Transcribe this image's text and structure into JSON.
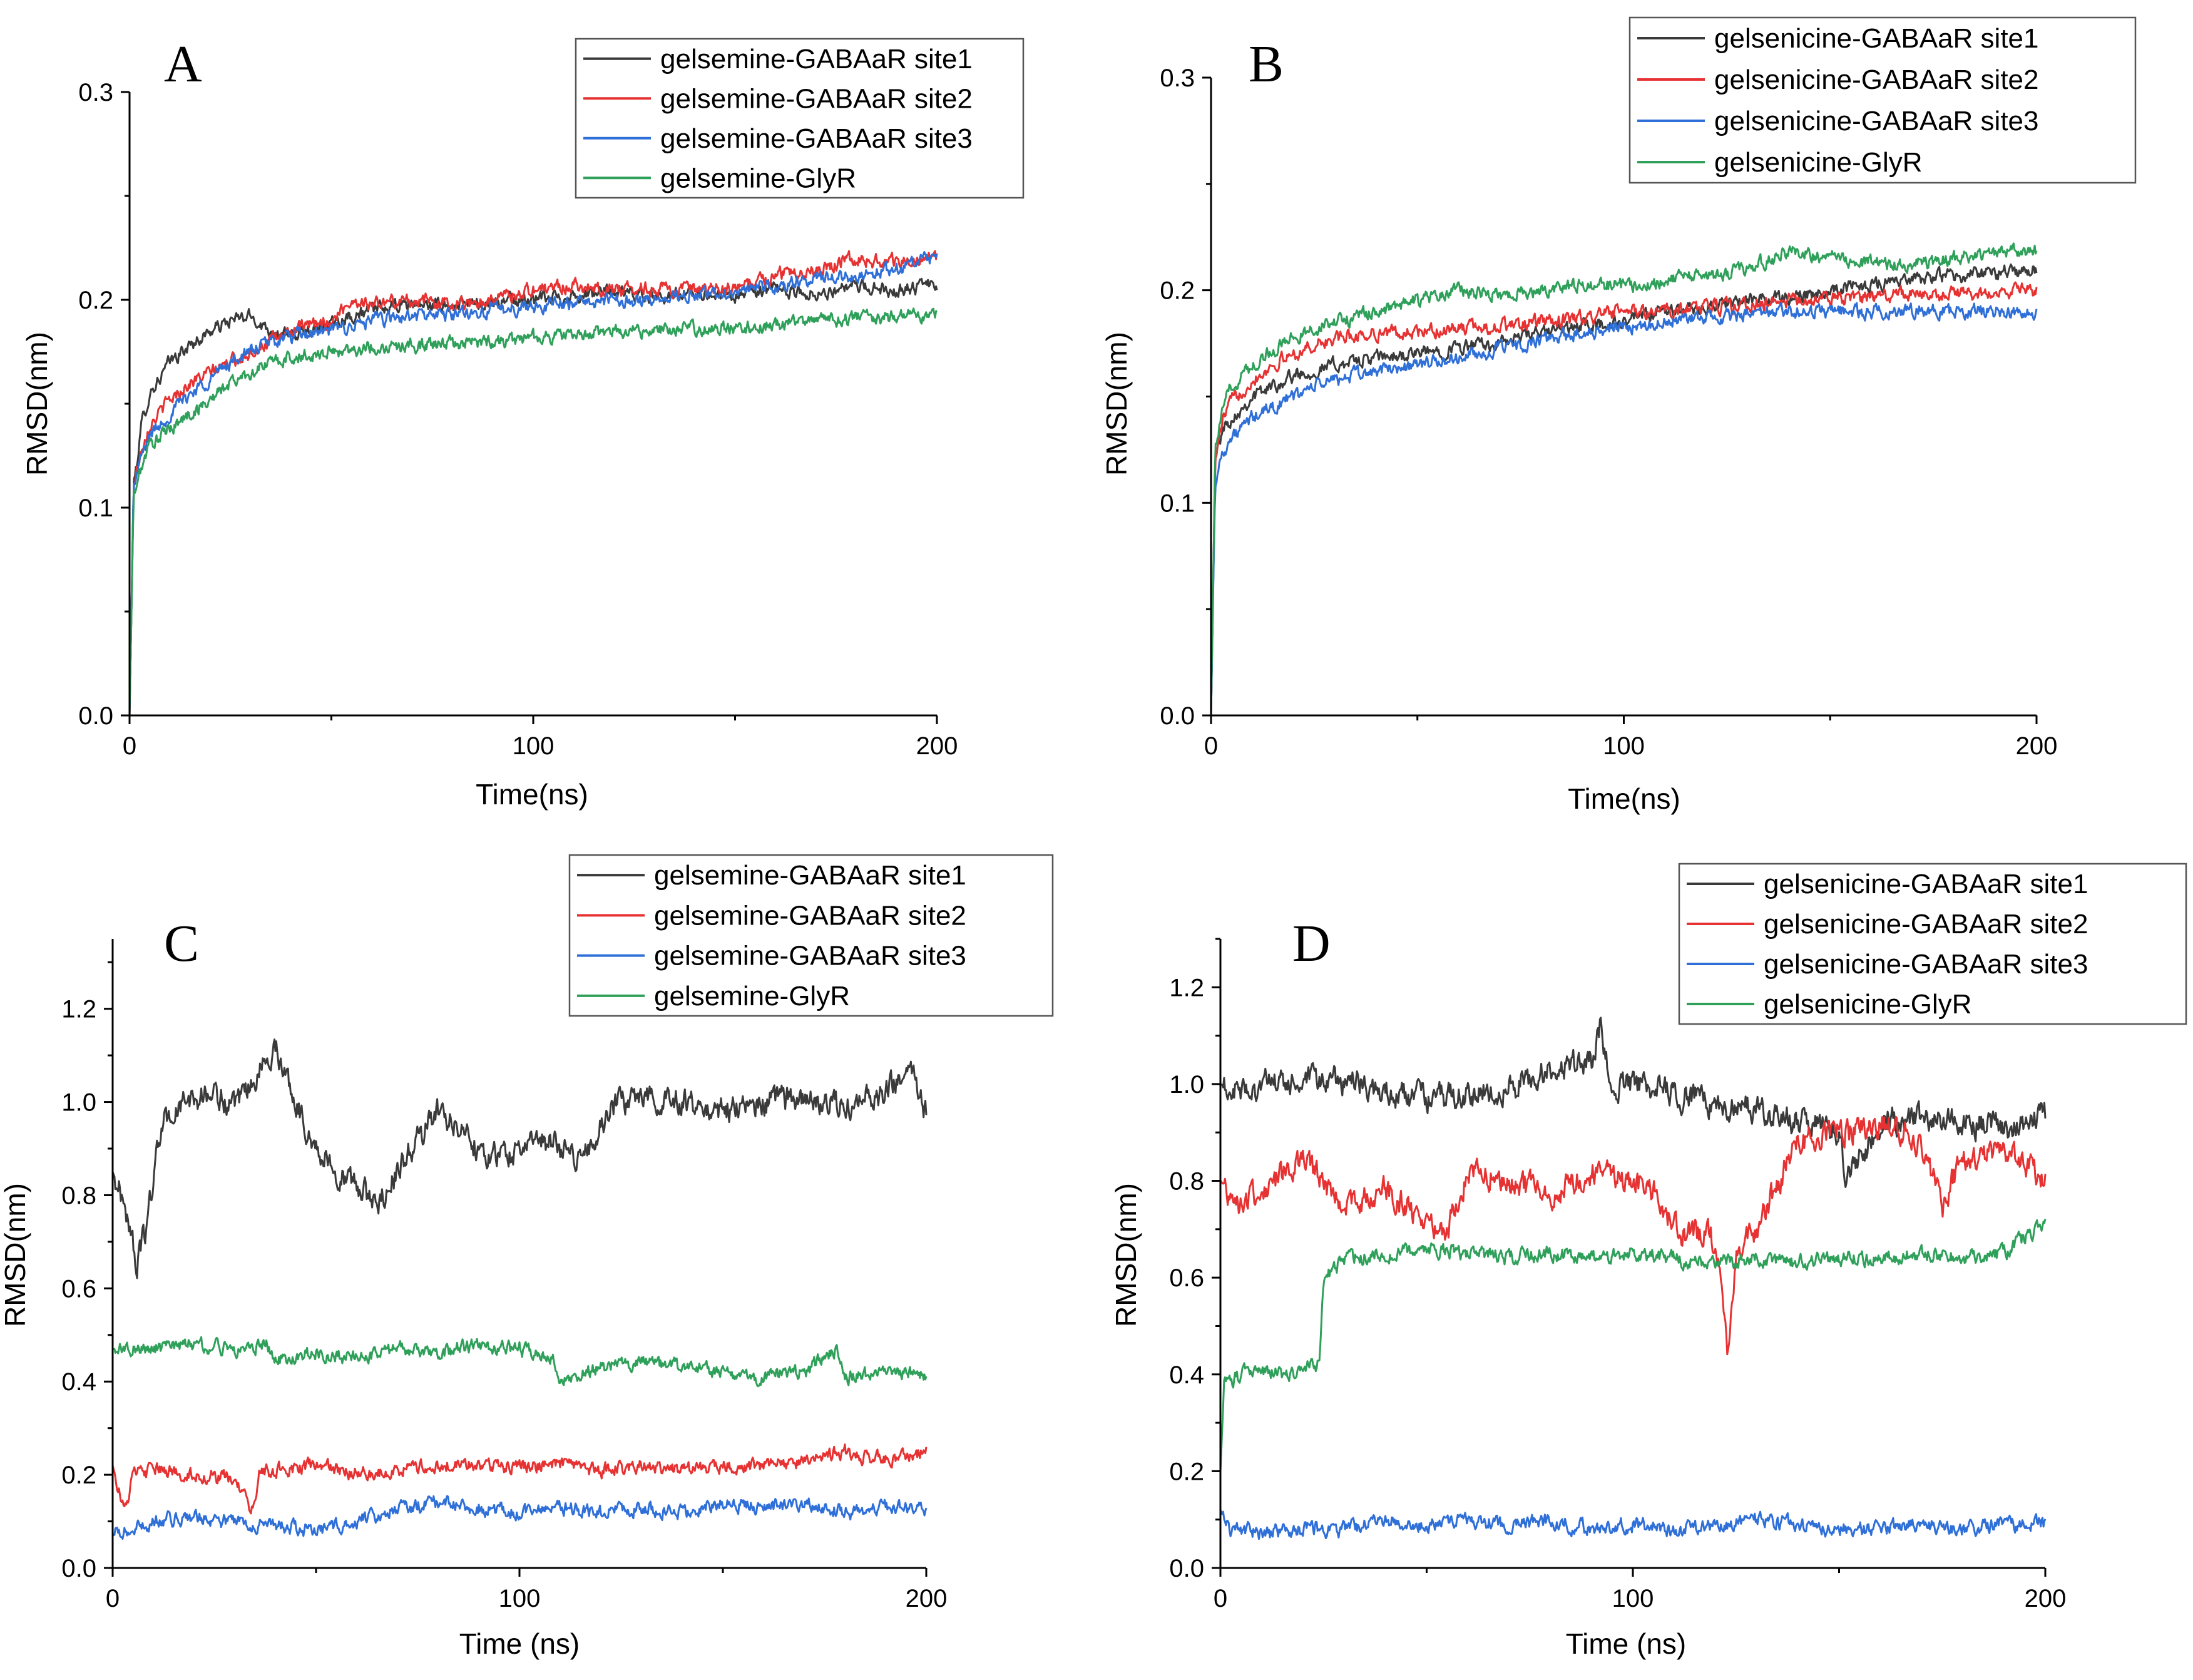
{
  "chart_data": [
    {
      "panel": "A",
      "type": "line",
      "xlabel": "Time(ns)",
      "ylabel": "RMSD(nm)",
      "xlim": [
        0,
        200
      ],
      "ylim": [
        0,
        0.3
      ],
      "xticks": [
        0,
        100,
        200
      ],
      "yticks": [
        0.0,
        0.1,
        0.2,
        0.3
      ],
      "legend_position": "top-right",
      "series": [
        {
          "name": "gelsemine-GABAaR site1",
          "color": "#3a3a3a",
          "x": [
            0,
            1,
            3,
            5,
            10,
            15,
            20,
            25,
            30,
            35,
            40,
            50,
            60,
            70,
            80,
            90,
            100,
            110,
            120,
            130,
            140,
            150,
            160,
            170,
            180,
            190,
            200
          ],
          "y": [
            0,
            0.11,
            0.14,
            0.155,
            0.17,
            0.178,
            0.185,
            0.19,
            0.192,
            0.185,
            0.182,
            0.19,
            0.195,
            0.198,
            0.197,
            0.199,
            0.2,
            0.202,
            0.204,
            0.202,
            0.203,
            0.202,
            0.205,
            0.203,
            0.206,
            0.205,
            0.207
          ]
        },
        {
          "name": "gelsemine-GABAaR site2",
          "color": "#e63232",
          "x": [
            0,
            1,
            3,
            5,
            10,
            15,
            20,
            25,
            30,
            35,
            40,
            50,
            55,
            60,
            70,
            80,
            90,
            100,
            110,
            120,
            130,
            140,
            150,
            160,
            170,
            180,
            190,
            200
          ],
          "y": [
            0,
            0.11,
            0.13,
            0.14,
            0.152,
            0.16,
            0.165,
            0.17,
            0.175,
            0.18,
            0.185,
            0.19,
            0.2,
            0.198,
            0.2,
            0.198,
            0.2,
            0.205,
            0.207,
            0.205,
            0.206,
            0.204,
            0.205,
            0.212,
            0.215,
            0.22,
            0.218,
            0.22
          ]
        },
        {
          "name": "gelsemine-GABAaR site3",
          "color": "#2f6fd8",
          "x": [
            0,
            1,
            3,
            5,
            10,
            15,
            20,
            25,
            30,
            35,
            40,
            50,
            60,
            70,
            80,
            90,
            100,
            110,
            120,
            130,
            140,
            150,
            160,
            170,
            180,
            190,
            200
          ],
          "y": [
            0,
            0.11,
            0.125,
            0.135,
            0.145,
            0.155,
            0.162,
            0.17,
            0.175,
            0.18,
            0.182,
            0.185,
            0.19,
            0.192,
            0.193,
            0.195,
            0.197,
            0.199,
            0.2,
            0.2,
            0.202,
            0.204,
            0.206,
            0.21,
            0.212,
            0.215,
            0.22
          ]
        },
        {
          "name": "gelsemine-GlyR",
          "color": "#2fa05a",
          "x": [
            0,
            1,
            3,
            5,
            10,
            15,
            20,
            25,
            30,
            35,
            40,
            50,
            60,
            70,
            80,
            90,
            100,
            110,
            120,
            130,
            140,
            150,
            160,
            170,
            180,
            190,
            200
          ],
          "y": [
            0,
            0.105,
            0.12,
            0.13,
            0.138,
            0.145,
            0.152,
            0.16,
            0.165,
            0.17,
            0.172,
            0.175,
            0.177,
            0.178,
            0.179,
            0.18,
            0.182,
            0.183,
            0.185,
            0.185,
            0.186,
            0.187,
            0.188,
            0.19,
            0.191,
            0.192,
            0.193
          ]
        }
      ]
    },
    {
      "panel": "B",
      "type": "line",
      "xlabel": "Time(ns)",
      "ylabel": "RMSD(nm)",
      "xlim": [
        0,
        200
      ],
      "ylim": [
        0,
        0.3
      ],
      "xticks": [
        0,
        100,
        200
      ],
      "yticks": [
        0.0,
        0.1,
        0.2,
        0.3
      ],
      "legend_position": "top-right",
      "series": [
        {
          "name": "gelsenicine-GABAaR site1",
          "color": "#3a3a3a",
          "x": [
            0,
            1,
            3,
            5,
            10,
            15,
            20,
            25,
            30,
            40,
            50,
            60,
            70,
            80,
            90,
            100,
            110,
            120,
            130,
            140,
            150,
            160,
            170,
            180,
            190,
            200
          ],
          "y": [
            0,
            0.12,
            0.135,
            0.14,
            0.15,
            0.155,
            0.16,
            0.162,
            0.165,
            0.168,
            0.17,
            0.173,
            0.175,
            0.18,
            0.183,
            0.185,
            0.19,
            0.192,
            0.195,
            0.197,
            0.2,
            0.203,
            0.205,
            0.207,
            0.208,
            0.21
          ]
        },
        {
          "name": "gelsenicine-GABAaR site2",
          "color": "#e63232",
          "x": [
            0,
            1,
            3,
            5,
            10,
            15,
            20,
            25,
            30,
            40,
            50,
            60,
            70,
            80,
            90,
            100,
            110,
            120,
            130,
            140,
            150,
            160,
            170,
            180,
            190,
            200
          ],
          "y": [
            0,
            0.12,
            0.14,
            0.148,
            0.158,
            0.165,
            0.17,
            0.174,
            0.177,
            0.18,
            0.18,
            0.182,
            0.183,
            0.185,
            0.187,
            0.19,
            0.19,
            0.192,
            0.193,
            0.195,
            0.196,
            0.197,
            0.198,
            0.198,
            0.2,
            0.2
          ]
        },
        {
          "name": "gelsenicine-GABAaR site3",
          "color": "#2f6fd8",
          "x": [
            0,
            1,
            3,
            5,
            10,
            15,
            20,
            25,
            30,
            40,
            50,
            60,
            70,
            80,
            90,
            100,
            110,
            120,
            130,
            140,
            150,
            160,
            170,
            180,
            190,
            200
          ],
          "y": [
            0,
            0.11,
            0.125,
            0.13,
            0.14,
            0.145,
            0.15,
            0.155,
            0.158,
            0.162,
            0.165,
            0.168,
            0.172,
            0.176,
            0.18,
            0.183,
            0.185,
            0.187,
            0.188,
            0.19,
            0.19,
            0.19,
            0.191,
            0.19,
            0.19,
            0.19
          ]
        },
        {
          "name": "gelsenicine-GlyR",
          "color": "#2fa05a",
          "x": [
            0,
            1,
            3,
            5,
            10,
            15,
            20,
            25,
            30,
            40,
            50,
            60,
            70,
            80,
            90,
            100,
            110,
            120,
            130,
            140,
            150,
            160,
            170,
            180,
            190,
            200
          ],
          "y": [
            0,
            0.125,
            0.145,
            0.155,
            0.165,
            0.172,
            0.178,
            0.182,
            0.185,
            0.19,
            0.195,
            0.2,
            0.198,
            0.2,
            0.203,
            0.202,
            0.205,
            0.207,
            0.21,
            0.218,
            0.215,
            0.213,
            0.212,
            0.215,
            0.218,
            0.218
          ]
        }
      ]
    },
    {
      "panel": "C",
      "type": "line",
      "xlabel": "Time (ns)",
      "ylabel": "RMSD(nm)",
      "xlim": [
        0,
        200
      ],
      "ylim": [
        0,
        1.35
      ],
      "xticks": [
        0,
        100,
        200
      ],
      "yticks": [
        0.0,
        0.2,
        0.4,
        0.6,
        0.8,
        1.0,
        1.2
      ],
      "legend_position": "top-right",
      "series": [
        {
          "name": "gelsemine-GABAaR site1",
          "color": "#3a3a3a",
          "x": [
            0,
            3,
            6,
            8,
            12,
            18,
            25,
            30,
            35,
            40,
            45,
            50,
            55,
            60,
            65,
            70,
            75,
            80,
            85,
            90,
            95,
            100,
            105,
            110,
            115,
            120,
            125,
            130,
            140,
            150,
            160,
            170,
            180,
            190,
            195,
            200
          ],
          "y": [
            0.85,
            0.78,
            0.65,
            0.72,
            0.95,
            1.0,
            1.02,
            0.98,
            1.05,
            1.12,
            1.0,
            0.9,
            0.85,
            0.82,
            0.78,
            0.85,
            0.92,
            0.98,
            0.95,
            0.9,
            0.88,
            0.9,
            0.92,
            0.9,
            0.88,
            0.95,
            1.0,
            1.02,
            1.0,
            0.98,
            1.0,
            1.01,
            0.99,
            1.02,
            1.08,
            0.98
          ]
        },
        {
          "name": "gelsemine-GABAaR site2",
          "color": "#e63232",
          "x": [
            0,
            3,
            5,
            10,
            20,
            30,
            34,
            36,
            40,
            50,
            60,
            70,
            80,
            90,
            100,
            110,
            120,
            130,
            140,
            150,
            160,
            170,
            180,
            190,
            200
          ],
          "y": [
            0.22,
            0.12,
            0.2,
            0.21,
            0.2,
            0.19,
            0.12,
            0.2,
            0.21,
            0.22,
            0.2,
            0.21,
            0.22,
            0.22,
            0.22,
            0.22,
            0.21,
            0.22,
            0.21,
            0.22,
            0.22,
            0.23,
            0.25,
            0.23,
            0.25
          ]
        },
        {
          "name": "gelsemine-GABAaR site3",
          "color": "#2f6fd8",
          "x": [
            0,
            5,
            10,
            20,
            30,
            40,
            50,
            60,
            70,
            80,
            90,
            100,
            110,
            120,
            130,
            140,
            150,
            160,
            170,
            180,
            190,
            200
          ],
          "y": [
            0.07,
            0.08,
            0.1,
            0.11,
            0.1,
            0.09,
            0.08,
            0.1,
            0.13,
            0.14,
            0.13,
            0.12,
            0.13,
            0.12,
            0.13,
            0.12,
            0.14,
            0.13,
            0.14,
            0.12,
            0.13,
            0.12
          ]
        },
        {
          "name": "gelsemine-GlyR",
          "color": "#2fa05a",
          "x": [
            0,
            10,
            20,
            30,
            38,
            40,
            50,
            60,
            70,
            80,
            90,
            100,
            108,
            110,
            120,
            130,
            140,
            150,
            160,
            170,
            178,
            180,
            190,
            200
          ],
          "y": [
            0.47,
            0.47,
            0.48,
            0.47,
            0.48,
            0.45,
            0.46,
            0.45,
            0.47,
            0.46,
            0.48,
            0.47,
            0.45,
            0.41,
            0.43,
            0.44,
            0.43,
            0.42,
            0.41,
            0.42,
            0.47,
            0.41,
            0.42,
            0.41
          ]
        }
      ]
    },
    {
      "panel": "D",
      "type": "line",
      "xlabel": "Time (ns)",
      "ylabel": "RMSD(nm)",
      "xlim": [
        0,
        200
      ],
      "ylim": [
        0,
        1.3
      ],
      "xticks": [
        0,
        100,
        200
      ],
      "yticks": [
        0.0,
        0.2,
        0.4,
        0.6,
        0.8,
        1.0,
        1.2
      ],
      "legend_position": "top-right",
      "series": [
        {
          "name": "gelsenicine-GABAaR site1",
          "color": "#3a3a3a",
          "x": [
            0,
            5,
            10,
            20,
            30,
            40,
            50,
            60,
            70,
            80,
            90,
            92,
            95,
            100,
            110,
            120,
            130,
            140,
            150,
            152,
            160,
            170,
            180,
            190,
            200
          ],
          "y": [
            1.0,
            0.98,
            1.0,
            1.0,
            1.01,
            0.98,
            0.97,
            0.98,
            0.99,
            1.03,
            1.05,
            1.12,
            1.0,
            1.0,
            0.98,
            0.96,
            0.95,
            0.92,
            0.9,
            0.8,
            0.92,
            0.93,
            0.92,
            0.91,
            0.93
          ]
        },
        {
          "name": "gelsenicine-GABAaR site2",
          "color": "#e63232",
          "x": [
            0,
            5,
            10,
            20,
            30,
            40,
            50,
            55,
            60,
            70,
            80,
            90,
            100,
            105,
            110,
            120,
            123,
            125,
            130,
            140,
            150,
            160,
            170,
            175,
            180,
            190,
            200
          ],
          "y": [
            0.8,
            0.75,
            0.78,
            0.84,
            0.75,
            0.78,
            0.72,
            0.7,
            0.82,
            0.8,
            0.77,
            0.82,
            0.8,
            0.78,
            0.7,
            0.68,
            0.45,
            0.65,
            0.7,
            0.88,
            0.9,
            0.92,
            0.88,
            0.75,
            0.85,
            0.86,
            0.8
          ]
        },
        {
          "name": "gelsenicine-GABAaR site3",
          "color": "#2f6fd8",
          "x": [
            0,
            2,
            5,
            10,
            20,
            30,
            40,
            50,
            60,
            70,
            80,
            90,
            100,
            110,
            120,
            130,
            140,
            150,
            160,
            170,
            180,
            190,
            200
          ],
          "y": [
            0.12,
            0.08,
            0.08,
            0.07,
            0.08,
            0.08,
            0.1,
            0.09,
            0.1,
            0.09,
            0.1,
            0.08,
            0.09,
            0.08,
            0.09,
            0.1,
            0.09,
            0.08,
            0.08,
            0.09,
            0.08,
            0.09,
            0.09
          ]
        },
        {
          "name": "gelsenicine-GlyR",
          "color": "#2fa05a",
          "x": [
            0,
            1,
            2,
            5,
            10,
            15,
            20,
            24,
            25,
            28,
            30,
            40,
            50,
            60,
            70,
            80,
            90,
            100,
            110,
            120,
            130,
            140,
            150,
            160,
            170,
            180,
            190,
            198,
            200
          ],
          "y": [
            0.2,
            0.4,
            0.38,
            0.4,
            0.41,
            0.4,
            0.41,
            0.42,
            0.6,
            0.62,
            0.64,
            0.65,
            0.66,
            0.65,
            0.64,
            0.65,
            0.64,
            0.65,
            0.64,
            0.63,
            0.64,
            0.63,
            0.64,
            0.64,
            0.65,
            0.64,
            0.65,
            0.7,
            0.72
          ]
        }
      ]
    }
  ]
}
